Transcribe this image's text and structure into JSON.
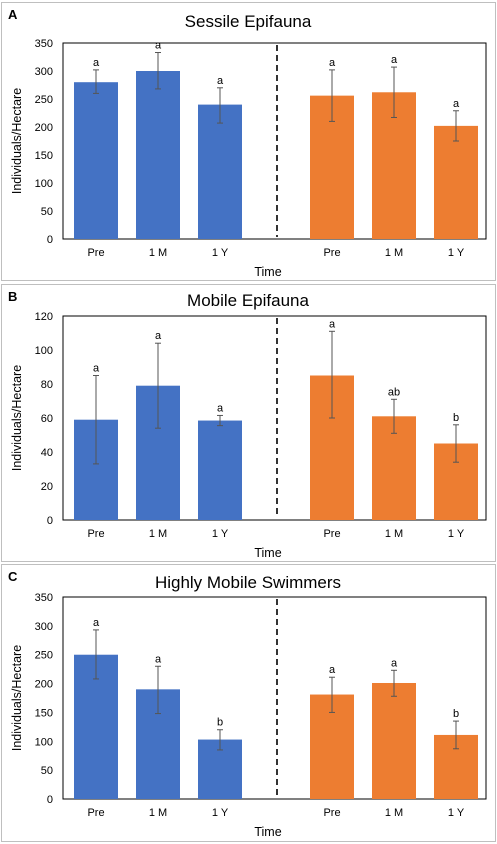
{
  "colors": {
    "blue": "#4472C4",
    "orange": "#ED7D31",
    "error": "#555555",
    "frame": "#bfbfbf"
  },
  "chart_data": [
    {
      "type": "bar",
      "panel": "A",
      "title": "Sessile Epifauna",
      "xlabel": "Time",
      "ylabel": "Individuals/Hectare",
      "ylim": [
        0,
        350
      ],
      "yticks": [
        0,
        50,
        100,
        150,
        200,
        250,
        300,
        350
      ],
      "groups": [
        {
          "color": "blue",
          "categories": [
            "Pre",
            "1 M",
            "1 Y"
          ],
          "values": [
            280,
            300,
            240
          ],
          "err_low": [
            260,
            268,
            207
          ],
          "err_high": [
            302,
            333,
            270
          ],
          "labels": [
            "a",
            "a",
            "a"
          ]
        },
        {
          "color": "orange",
          "categories": [
            "Pre",
            "1 M",
            "1 Y"
          ],
          "values": [
            256,
            262,
            202
          ],
          "err_low": [
            210,
            217,
            175
          ],
          "err_high": [
            302,
            307,
            229
          ],
          "labels": [
            "a",
            "a",
            "a"
          ]
        }
      ]
    },
    {
      "type": "bar",
      "panel": "B",
      "title": "Mobile Epifauna",
      "xlabel": "Time",
      "ylabel": "Individuals/Hectare",
      "ylim": [
        0,
        120
      ],
      "yticks": [
        0,
        20,
        40,
        60,
        80,
        100,
        120
      ],
      "groups": [
        {
          "color": "blue",
          "categories": [
            "Pre",
            "1 M",
            "1 Y"
          ],
          "values": [
            59,
            79,
            58.5
          ],
          "err_low": [
            33,
            54,
            55.5
          ],
          "err_high": [
            85,
            104,
            61.5
          ],
          "labels": [
            "a",
            "a",
            "a"
          ]
        },
        {
          "color": "orange",
          "categories": [
            "Pre",
            "1 M",
            "1 Y"
          ],
          "values": [
            85,
            61,
            45
          ],
          "err_low": [
            60,
            51,
            34
          ],
          "err_high": [
            111,
            71,
            56
          ],
          "labels": [
            "a",
            "ab",
            "b"
          ]
        }
      ]
    },
    {
      "type": "bar",
      "panel": "C",
      "title": "Highly Mobile Swimmers",
      "xlabel": "Time",
      "ylabel": "Individuals/Hectare",
      "ylim": [
        0,
        350
      ],
      "yticks": [
        0,
        50,
        100,
        150,
        200,
        250,
        300,
        350
      ],
      "groups": [
        {
          "color": "blue",
          "categories": [
            "Pre",
            "1 M",
            "1 Y"
          ],
          "values": [
            250,
            190,
            103
          ],
          "err_low": [
            208,
            148,
            85
          ],
          "err_high": [
            293,
            230,
            120
          ],
          "labels": [
            "a",
            "a",
            "b"
          ]
        },
        {
          "color": "orange",
          "categories": [
            "Pre",
            "1 M",
            "1 Y"
          ],
          "values": [
            181,
            201,
            111
          ],
          "err_low": [
            150,
            178,
            87
          ],
          "err_high": [
            211,
            223,
            135
          ],
          "labels": [
            "a",
            "a",
            "b"
          ]
        }
      ]
    }
  ]
}
